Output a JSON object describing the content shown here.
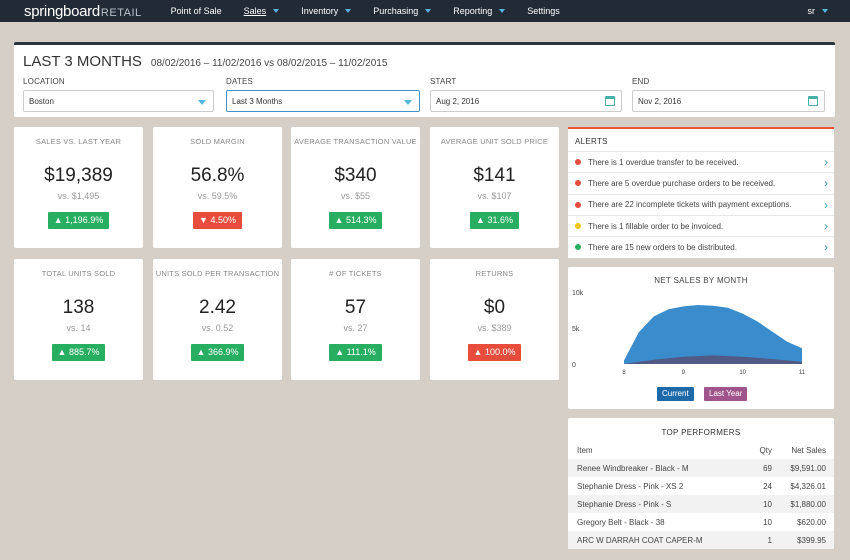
{
  "nav": {
    "logo_main": "springboard",
    "logo_sub": "RETAIL",
    "items": [
      {
        "label": "Point of Sale",
        "dropdown": false,
        "active": false
      },
      {
        "label": "Sales",
        "dropdown": true,
        "active": true
      },
      {
        "label": "Inventory",
        "dropdown": true,
        "active": false
      },
      {
        "label": "Purchasing",
        "dropdown": true,
        "active": false
      },
      {
        "label": "Reporting",
        "dropdown": true,
        "active": false
      },
      {
        "label": "Settings",
        "dropdown": false,
        "active": false
      }
    ],
    "user": "sr",
    "accent": "#56b6e0",
    "background": "#222a35"
  },
  "filter": {
    "title": "LAST 3 MONTHS",
    "range": "08/02/2016 – 11/02/2016 vs 08/02/2015 – 11/02/2015",
    "location_label": "LOCATION",
    "location_value": "Boston",
    "dates_label": "DATES",
    "dates_value": "Last 3 Months",
    "start_label": "START",
    "start_value": "Aug 2, 2016",
    "end_label": "END",
    "end_value": "Nov 2, 2016"
  },
  "metrics": [
    {
      "label": "SALES VS. LAST YEAR",
      "value": "$19,389",
      "prev": "vs. $1,495",
      "change": "▲ 1,196.9%",
      "direction": "up"
    },
    {
      "label": "SOLD MARGIN",
      "value": "56.8%",
      "prev": "vs. 59.5%",
      "change": "▼ 4.50%",
      "direction": "down"
    },
    {
      "label": "AVERAGE TRANSACTION VALUE",
      "value": "$340",
      "prev": "vs. $55",
      "change": "▲ 514.3%",
      "direction": "up"
    },
    {
      "label": "AVERAGE UNIT SOLD PRICE",
      "value": "$141",
      "prev": "vs. $107",
      "change": "▲ 31.6%",
      "direction": "up"
    },
    {
      "label": "TOTAL UNITS SOLD",
      "value": "138",
      "prev": "vs. 14",
      "change": "▲ 885.7%",
      "direction": "up"
    },
    {
      "label": "UNITS SOLD PER TRANSACTION",
      "value": "2.42",
      "prev": "vs. 0.52",
      "change": "▲ 366.9%",
      "direction": "up"
    },
    {
      "label": "# OF TICKETS",
      "value": "57",
      "prev": "vs. 27",
      "change": "▲ 111.1%",
      "direction": "up"
    },
    {
      "label": "RETURNS",
      "value": "$0",
      "prev": "vs. $389",
      "change": "▲ 100.0%",
      "direction": "down"
    }
  ],
  "alerts": {
    "title": "ALERTS",
    "accent": "#e8553b",
    "items": [
      {
        "text": "There is 1 overdue transfer to be received.",
        "color": "#e74c3c"
      },
      {
        "text": "There are 5 overdue purchase orders to be received.",
        "color": "#e74c3c"
      },
      {
        "text": "There are 22 incomplete tickets with payment exceptions.",
        "color": "#e74c3c"
      },
      {
        "text": "There is 1 fillable order to be invoiced.",
        "color": "#f1c40f"
      },
      {
        "text": "There are 15 new orders to be distributed.",
        "color": "#27ae60"
      }
    ]
  },
  "chart_data": {
    "type": "area",
    "title": "NET SALES BY MONTH",
    "x": [
      8,
      9,
      10,
      11
    ],
    "ytick_labels": [
      "10k",
      "5k",
      "0"
    ],
    "ylim": [
      0,
      10000
    ],
    "xlim": [
      8,
      11
    ],
    "series": [
      {
        "name": "Current",
        "color": "#2f86c9",
        "x": [
          8,
          8.25,
          8.5,
          8.75,
          9,
          9.25,
          9.5,
          9.75,
          10,
          10.25,
          10.5,
          10.75,
          11
        ],
        "values": [
          500,
          4400,
          6600,
          7600,
          8000,
          8200,
          8100,
          7800,
          7000,
          5900,
          4500,
          3100,
          2200
        ]
      },
      {
        "name": "Last Year",
        "color": "#5a4a6e",
        "x": [
          8,
          8.5,
          9,
          9.5,
          10,
          10.5,
          11
        ],
        "values": [
          0,
          600,
          1000,
          1200,
          1000,
          700,
          300
        ]
      }
    ],
    "legend_colors": {
      "current": "#1e6aa8",
      "last_year": "#a0548c"
    }
  },
  "performers": {
    "title": "TOP PERFORMERS",
    "headers": {
      "item": "Item",
      "qty": "Qty",
      "net": "Net Sales"
    },
    "rows": [
      {
        "item": "Renee Windbreaker - Black - M",
        "qty": "69",
        "net": "$9,591.00"
      },
      {
        "item": "Stephanie Dress - Pink - XS 2",
        "qty": "24",
        "net": "$4,326.01"
      },
      {
        "item": "Stephanie Dress - Pink - S",
        "qty": "10",
        "net": "$1,880.00"
      },
      {
        "item": "Gregory Belt - Black - 38",
        "qty": "10",
        "net": "$620.00"
      },
      {
        "item": "ARC W DARRAH COAT CAPER-M",
        "qty": "1",
        "net": "$399.95"
      }
    ]
  }
}
